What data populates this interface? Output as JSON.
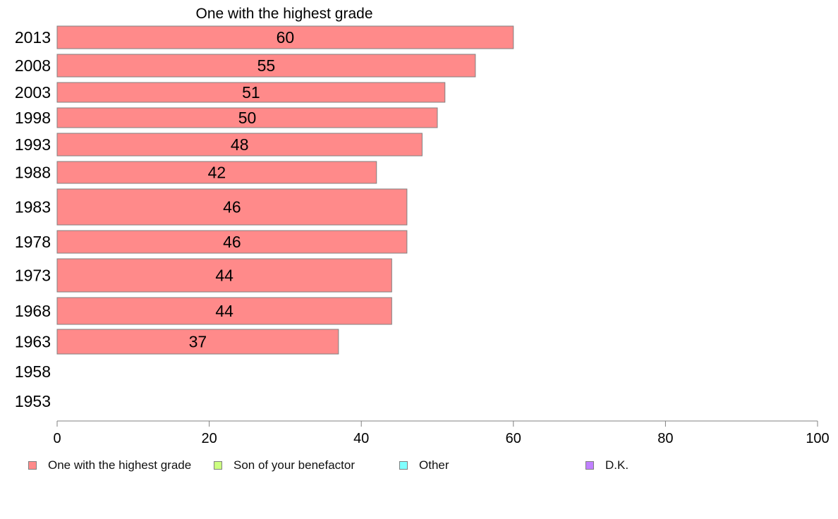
{
  "chart_data": {
    "type": "bar",
    "orientation": "horizontal",
    "title": "One with the highest grade",
    "categories": [
      "2013",
      "2008",
      "2003",
      "1998",
      "1993",
      "1988",
      "1983",
      "1978",
      "1973",
      "1968",
      "1963",
      "1958",
      "1953"
    ],
    "series": [
      {
        "name": "One with the highest grade",
        "color": "#ff8a8a",
        "values": [
          60,
          55,
          51,
          50,
          48,
          42,
          46,
          46,
          44,
          44,
          37,
          null,
          null
        ],
        "labels": [
          "60",
          "55",
          "51",
          "50",
          "48",
          "42",
          "46",
          "46",
          "44",
          "44",
          "37",
          "",
          ""
        ]
      }
    ],
    "xlim": [
      0,
      100
    ],
    "xticks": [
      "0",
      "20",
      "40",
      "60",
      "80",
      "100"
    ],
    "grid": false,
    "legend_position": "bottom"
  },
  "legend": [
    {
      "label": "One with the highest grade",
      "color": "#ff8a8a"
    },
    {
      "label": "Son of your benefactor",
      "color": "#ccff80"
    },
    {
      "label": "Other",
      "color": "#80ffff"
    },
    {
      "label": "D.K.",
      "color": "#c080ff"
    }
  ]
}
